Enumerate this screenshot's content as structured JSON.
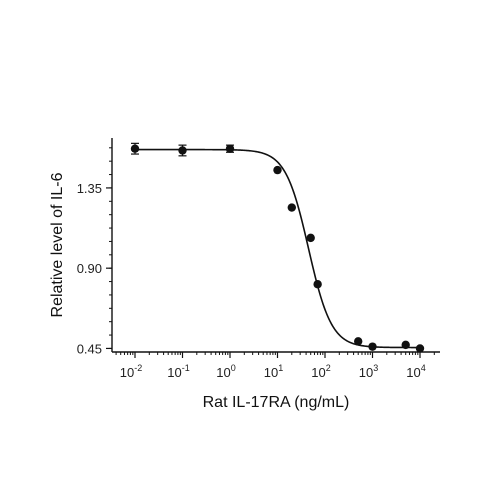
{
  "chart_data": {
    "type": "scatter",
    "xlabel": "Rat IL-17RA (ng/mL)",
    "ylabel": "Relative level of IL-6",
    "x_scale": "log",
    "xlim": [
      0.005,
      15000
    ],
    "ylim": [
      0.43,
      1.63
    ],
    "x_ticks": [
      {
        "value": 0.01,
        "base": "10",
        "exp": "-2"
      },
      {
        "value": 0.1,
        "base": "10",
        "exp": "-1"
      },
      {
        "value": 1,
        "base": "10",
        "exp": "0"
      },
      {
        "value": 10,
        "base": "10",
        "exp": "1"
      },
      {
        "value": 100,
        "base": "10",
        "exp": "2"
      },
      {
        "value": 1000,
        "base": "10",
        "exp": "3"
      },
      {
        "value": 10000,
        "base": "10",
        "exp": "4"
      }
    ],
    "y_ticks": [
      {
        "value": 0.45,
        "label": "0.45"
      },
      {
        "value": 0.9,
        "label": "0.90"
      },
      {
        "value": 1.35,
        "label": "1.35"
      }
    ],
    "points": [
      {
        "x": 0.01,
        "y": 1.57,
        "err": 0.03
      },
      {
        "x": 0.1,
        "y": 1.56,
        "err": 0.03
      },
      {
        "x": 1,
        "y": 1.57,
        "err": 0.02
      },
      {
        "x": 10,
        "y": 1.45
      },
      {
        "x": 20,
        "y": 1.24
      },
      {
        "x": 50,
        "y": 1.07
      },
      {
        "x": 70,
        "y": 0.81
      },
      {
        "x": 500,
        "y": 0.49
      },
      {
        "x": 1000,
        "y": 0.46
      },
      {
        "x": 5000,
        "y": 0.47
      },
      {
        "x": 10000,
        "y": 0.45
      }
    ],
    "fit": {
      "bottom": 0.455,
      "top": 1.565,
      "ec50": 45,
      "hill": 1.8
    },
    "grid": false,
    "marker_color": "#111111",
    "line_color": "#111111"
  }
}
